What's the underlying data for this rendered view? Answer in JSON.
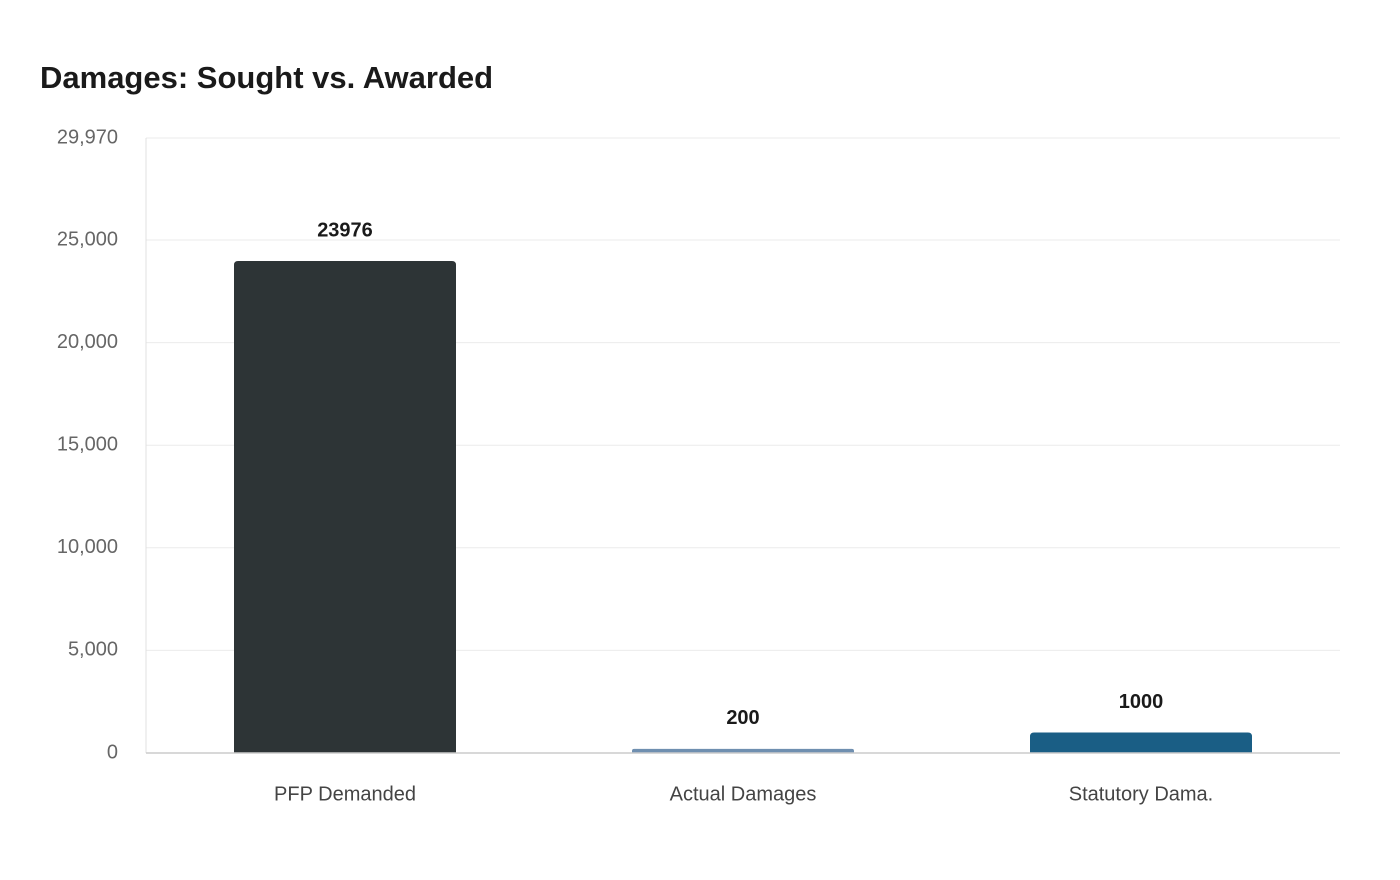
{
  "chart_data": {
    "type": "bar",
    "title": "Damages: Sought vs. Awarded",
    "categories": [
      "PFP Demanded",
      "Actual Damages",
      "Statutory Dama."
    ],
    "values": [
      23976,
      200,
      1000
    ],
    "colors": [
      "#2d3436",
      "#6f8fb0",
      "#1a5e85"
    ],
    "ylim": [
      0,
      29970
    ],
    "yticks": [
      0,
      {
        "value": 5000,
        "label": "5,000"
      },
      {
        "value": 10000,
        "label": "10,000"
      },
      {
        "value": 15000,
        "label": "15,000"
      },
      {
        "value": 20000,
        "label": "20,000"
      },
      {
        "value": 25000,
        "label": "25,000"
      },
      {
        "value": 29970,
        "label": "29,970"
      }
    ],
    "grid": true
  }
}
